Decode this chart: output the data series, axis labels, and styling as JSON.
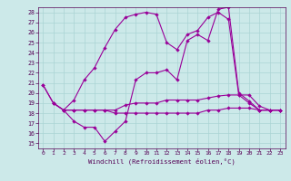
{
  "xlabel": "Windchill (Refroidissement éolien,°C)",
  "xlim": [
    -0.5,
    23.5
  ],
  "ylim": [
    14.5,
    28.5
  ],
  "yticks": [
    15,
    16,
    17,
    18,
    19,
    20,
    21,
    22,
    23,
    24,
    25,
    26,
    27,
    28
  ],
  "xticks": [
    0,
    1,
    2,
    3,
    4,
    5,
    6,
    7,
    8,
    9,
    10,
    11,
    12,
    13,
    14,
    15,
    16,
    17,
    18,
    19,
    20,
    21,
    22,
    23
  ],
  "background_color": "#cce9e9",
  "grid_color": "#aad4d4",
  "line_color": "#990099",
  "line1_x": [
    0,
    1,
    2,
    3,
    4,
    5,
    6,
    7,
    8,
    9,
    10,
    11,
    12,
    13,
    14,
    15,
    16,
    17,
    18,
    19,
    20,
    21,
    22,
    23
  ],
  "line1_y": [
    20.8,
    19.0,
    18.3,
    17.2,
    16.6,
    16.6,
    15.2,
    16.2,
    17.2,
    21.3,
    22.0,
    22.0,
    22.3,
    21.3,
    25.2,
    25.8,
    25.2,
    28.3,
    28.5,
    20.0,
    19.2,
    18.3,
    18.3,
    18.3
  ],
  "line2_x": [
    0,
    1,
    2,
    3,
    4,
    5,
    6,
    7,
    8,
    9,
    10,
    11,
    12,
    13,
    14,
    15,
    16,
    17,
    18,
    19,
    20,
    21,
    22,
    23
  ],
  "line2_y": [
    20.8,
    19.0,
    18.3,
    18.3,
    18.3,
    18.3,
    18.3,
    18.3,
    18.8,
    19.0,
    19.0,
    19.0,
    19.3,
    19.3,
    19.3,
    19.3,
    19.5,
    19.7,
    19.8,
    19.8,
    19.8,
    18.7,
    18.3,
    18.3
  ],
  "line3_x": [
    1,
    2,
    3,
    4,
    5,
    6,
    7,
    8,
    9,
    10,
    11,
    12,
    13,
    14,
    15,
    16,
    17,
    18,
    19,
    20,
    21,
    22,
    23
  ],
  "line3_y": [
    19.0,
    18.3,
    18.3,
    18.3,
    18.3,
    18.3,
    18.0,
    18.0,
    18.0,
    18.0,
    18.0,
    18.0,
    18.0,
    18.0,
    18.0,
    18.3,
    18.3,
    18.5,
    18.5,
    18.5,
    18.3,
    18.3,
    18.3
  ],
  "line4_x": [
    2,
    3,
    4,
    5,
    6,
    7,
    8,
    9,
    10,
    11,
    12,
    13,
    14,
    15,
    16,
    17,
    18,
    19,
    20,
    21,
    22,
    23
  ],
  "line4_y": [
    18.3,
    19.3,
    21.3,
    22.5,
    24.5,
    26.3,
    27.5,
    27.8,
    28.0,
    27.8,
    25.0,
    24.3,
    25.8,
    26.2,
    27.5,
    28.0,
    27.3,
    19.8,
    19.0,
    18.3,
    18.3,
    18.3
  ]
}
